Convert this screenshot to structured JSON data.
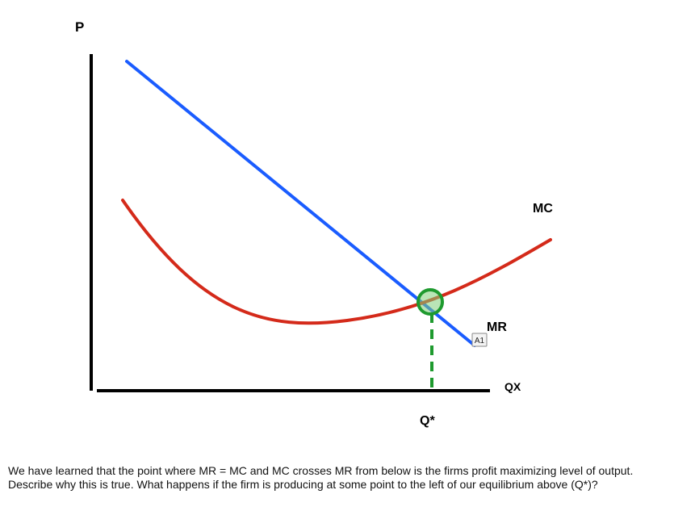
{
  "labels": {
    "y_axis": "P",
    "x_axis": "QX",
    "mc": "MC",
    "mr": "MR",
    "q_star": "Q*",
    "tag": "A1"
  },
  "colors": {
    "mr_line": "#1a5cff",
    "mc_curve": "#d42a1a",
    "marker": "#1e9a2e",
    "axes": "#000000"
  },
  "question": "We have learned that the point where MR = MC and MC crosses MR from below is the firms profit maximizing level of output.  Describe why this is true.  What happens if the firm is producing at some point to the left of our equilibrium above (Q*)?"
}
